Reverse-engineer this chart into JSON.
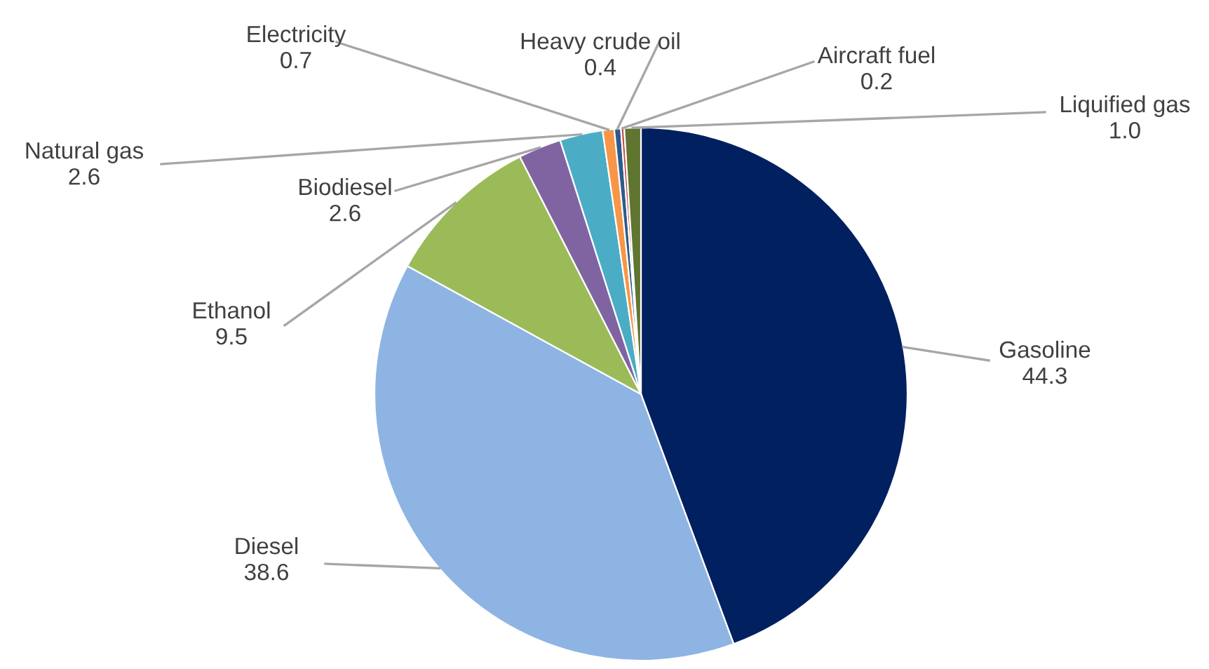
{
  "chart_data": {
    "type": "pie",
    "categories": [
      "Gasoline",
      "Diesel",
      "Ethanol",
      "Biodiesel",
      "Natural gas",
      "Electricity",
      "Heavy crude oil",
      "Aircraft fuel",
      "Liquified gas"
    ],
    "values": [
      44.3,
      38.6,
      9.5,
      2.6,
      2.6,
      0.7,
      0.4,
      0.2,
      1.0
    ],
    "colors": [
      "#002060",
      "#8eb4e3",
      "#9bbb59",
      "#8064a2",
      "#4bacc6",
      "#f79646",
      "#2e5a8a",
      "#c0504d",
      "#5f7530"
    ],
    "value_labels": [
      "44.3",
      "38.6",
      "9.5",
      "2.6",
      "2.6",
      "0.7",
      "0.4",
      "0.2",
      "1.0"
    ]
  }
}
